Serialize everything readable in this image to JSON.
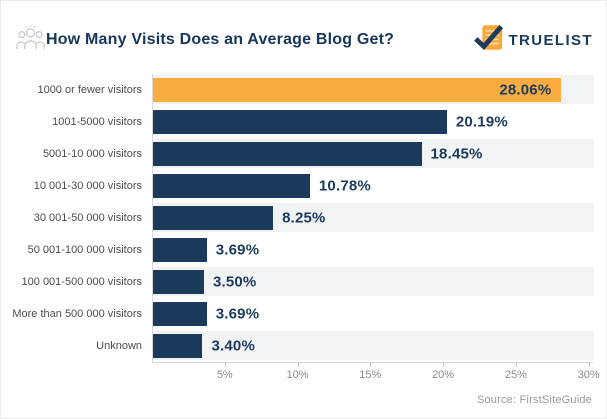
{
  "header": {
    "title": "How Many Visits Does an Average Blog Get?",
    "brand": "TRUELIST"
  },
  "chart_data": {
    "type": "bar",
    "orientation": "horizontal",
    "title": "How Many Visits Does an Average Blog Get?",
    "categories": [
      "1000 or fewer visitors",
      "1001-5000 visitors",
      "5001-10 000 visitors",
      "10 001-30 000 visitors",
      "30 001-50 000 visitors",
      "50 001-100 000 visitors",
      "100 001-500 000 visitors",
      "More than 500 000 visitors",
      "Unknown"
    ],
    "values": [
      28.06,
      20.19,
      18.45,
      10.78,
      8.25,
      3.69,
      3.5,
      3.69,
      3.4
    ],
    "value_labels": [
      "28.06%",
      "20.19%",
      "18.45%",
      "10.78%",
      "8.25%",
      "3.69%",
      "3.50%",
      "3.69%",
      "3.40%"
    ],
    "x_ticks": [
      {
        "value": 5,
        "label": "5%"
      },
      {
        "value": 10,
        "label": "10%"
      },
      {
        "value": 15,
        "label": "15%"
      },
      {
        "value": 20,
        "label": "20%"
      },
      {
        "value": 25,
        "label": "25%"
      },
      {
        "value": 30,
        "label": "30%"
      }
    ],
    "xlim": [
      0,
      30.3
    ],
    "grid": false,
    "legend": false,
    "highlight_index": 0,
    "inside_label_index": 0,
    "colors": {
      "bar": "#1b3a5c",
      "highlight": "#faac40",
      "row_stripe": "#f2f3f4",
      "value_text": "#1b3a5c",
      "axis_line": "#d8d8d8"
    }
  },
  "icons": {
    "header": "people-group-icon",
    "logo": "checklist-check-icon"
  },
  "source": "Source: FirstSiteGuide"
}
